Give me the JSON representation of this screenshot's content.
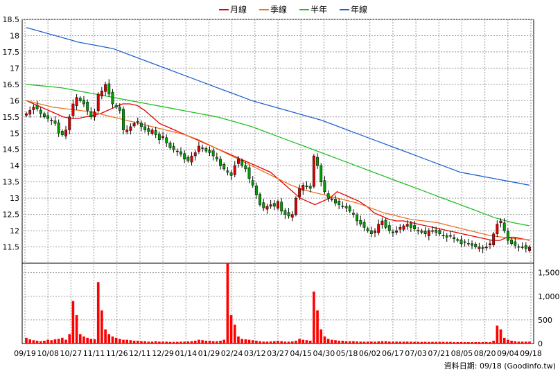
{
  "chart_data": {
    "type": "candlestick+volume",
    "legend": [
      {
        "label": "月線",
        "color": "#e00000"
      },
      {
        "label": "季線",
        "color": "#f07020"
      },
      {
        "label": "半年",
        "color": "#20c020"
      },
      {
        "label": "年線",
        "color": "#2060d0"
      }
    ],
    "colors": {
      "up": "#e00000",
      "down": "#00a000",
      "volume": "#ff0000",
      "grid": "#9a9a9a"
    },
    "price_axis": {
      "ticks": [
        "18.5",
        "18",
        "17.5",
        "17",
        "16.5",
        "16",
        "15.5",
        "15",
        "14.5",
        "14",
        "13.5",
        "13",
        "12.5",
        "12",
        "11.5"
      ],
      "ylim": [
        11.0,
        18.5
      ]
    },
    "volume_axis": {
      "ticks": [
        "1,500",
        "1,000",
        "500",
        "0"
      ],
      "ylim": [
        0,
        1700
      ]
    },
    "x_ticks": [
      "09/19",
      "10/08",
      "10/27",
      "11/11",
      "11/26",
      "12/11",
      "12/29",
      "01/14",
      "01/29",
      "02/24",
      "03/12",
      "03/27",
      "04/15",
      "04/30",
      "05/18",
      "06/02",
      "06/17",
      "07/03",
      "07/21",
      "08/05",
      "08/20",
      "09/04",
      "09/18"
    ],
    "close": [
      15.6,
      15.7,
      15.8,
      15.75,
      15.6,
      15.5,
      15.45,
      15.4,
      15.3,
      15.0,
      14.95,
      15.1,
      15.5,
      15.9,
      16.1,
      16.0,
      15.9,
      15.7,
      15.5,
      15.65,
      16.2,
      16.3,
      16.5,
      16.2,
      15.9,
      15.8,
      15.7,
      15.1,
      15.1,
      15.2,
      15.3,
      15.35,
      15.2,
      15.1,
      15.05,
      15.1,
      14.95,
      14.8,
      14.9,
      14.7,
      14.55,
      14.5,
      14.45,
      14.35,
      14.2,
      14.15,
      14.3,
      14.4,
      14.6,
      14.55,
      14.45,
      14.4,
      14.3,
      14.2,
      14.0,
      13.9,
      13.8,
      13.7,
      14.0,
      14.2,
      14.0,
      13.9,
      13.6,
      13.4,
      13.1,
      12.8,
      12.7,
      12.75,
      12.8,
      12.75,
      12.9,
      12.6,
      12.5,
      12.45,
      12.5,
      13.0,
      13.3,
      13.4,
      13.35,
      13.3,
      14.3,
      14.0,
      13.5,
      13.2,
      13.0,
      12.95,
      12.85,
      12.8,
      12.75,
      12.7,
      12.6,
      12.5,
      12.3,
      12.2,
      12.1,
      12.0,
      11.9,
      12.0,
      12.2,
      12.3,
      12.1,
      12.0,
      11.95,
      12.0,
      12.1,
      12.15,
      12.2,
      12.1,
      12.05,
      12.0,
      11.95,
      11.9,
      12.0,
      12.0,
      11.95,
      11.9,
      11.85,
      11.8,
      11.85,
      11.75,
      11.7,
      11.6,
      11.65,
      11.6,
      11.55,
      11.5,
      11.5,
      11.45,
      11.5,
      11.6,
      11.9,
      12.2,
      12.3,
      12.0,
      11.7,
      11.6,
      11.55,
      11.5,
      11.5,
      11.45,
      11.5
    ],
    "volume": [
      120,
      90,
      70,
      60,
      50,
      60,
      80,
      70,
      90,
      100,
      120,
      80,
      200,
      900,
      600,
      200,
      150,
      120,
      100,
      90,
      1300,
      700,
      300,
      200,
      150,
      120,
      100,
      80,
      80,
      70,
      60,
      60,
      50,
      50,
      40,
      40,
      50,
      40,
      40,
      40,
      35,
      35,
      35,
      40,
      40,
      45,
      50,
      60,
      80,
      70,
      60,
      60,
      50,
      50,
      60,
      80,
      1700,
      600,
      400,
      150,
      100,
      90,
      80,
      70,
      60,
      50,
      40,
      40,
      45,
      50,
      60,
      50,
      40,
      40,
      45,
      60,
      100,
      80,
      70,
      60,
      1100,
      700,
      300,
      150,
      100,
      80,
      70,
      60,
      60,
      50,
      50,
      50,
      45,
      40,
      40,
      40,
      40,
      40,
      45,
      50,
      50,
      40,
      40,
      40,
      40,
      40,
      40,
      40,
      35,
      35,
      35,
      35,
      35,
      35,
      35,
      35,
      35,
      35,
      35,
      30,
      30,
      30,
      30,
      30,
      30,
      30,
      30,
      30,
      30,
      30,
      60,
      380,
      300,
      120,
      80,
      60,
      50,
      40,
      40,
      40,
      40
    ],
    "ma": {
      "月線": [
        16.0,
        15.9,
        15.8,
        15.7,
        15.6,
        15.5,
        15.45,
        15.45,
        15.5,
        15.55,
        15.6,
        15.7,
        15.8,
        15.9,
        15.9,
        15.85,
        15.7,
        15.5,
        15.3,
        15.2,
        15.1,
        15.0,
        14.9,
        14.8,
        14.7,
        14.6,
        14.5,
        14.4,
        14.3,
        14.2,
        14.1,
        14.0,
        13.9,
        13.8,
        13.6,
        13.4,
        13.2,
        13.0,
        12.9,
        12.8,
        12.9,
        13.0,
        13.2,
        13.1,
        13.0,
        12.9,
        12.75,
        12.55,
        12.45,
        12.35,
        12.3,
        12.3,
        12.25,
        12.2,
        12.15,
        12.1,
        12.05,
        12.0,
        11.95,
        11.9,
        11.85,
        11.8,
        11.75,
        11.7,
        11.7,
        11.8,
        11.8,
        11.75,
        11.7
      ],
      "季線": [
        16.0,
        15.9,
        15.8,
        15.75,
        15.7,
        15.65,
        15.55,
        15.45,
        15.35,
        15.25,
        15.15,
        15.05,
        14.95,
        14.8,
        14.6,
        14.4,
        14.2,
        14.0,
        13.8,
        13.6,
        13.4,
        13.25,
        13.15,
        13.05,
        12.95,
        12.85,
        12.7,
        12.55,
        12.45,
        12.35,
        12.3,
        12.25,
        12.15,
        12.05,
        11.95,
        11.85,
        11.8,
        11.75,
        11.72
      ],
      "半年": [
        16.5,
        16.45,
        16.4,
        16.3,
        16.2,
        16.1,
        16.0,
        15.9,
        15.8,
        15.7,
        15.6,
        15.5,
        15.35,
        15.2,
        15.0,
        14.8,
        14.6,
        14.4,
        14.2,
        14.0,
        13.8,
        13.6,
        13.4,
        13.2,
        13.0,
        12.8,
        12.6,
        12.4,
        12.25,
        12.15
      ],
      "年線": [
        18.25,
        18.1,
        17.95,
        17.8,
        17.7,
        17.6,
        17.4,
        17.2,
        17.0,
        16.8,
        16.6,
        16.4,
        16.2,
        16.0,
        15.85,
        15.7,
        15.55,
        15.4,
        15.2,
        15.0,
        14.8,
        14.6,
        14.4,
        14.2,
        14.0,
        13.8,
        13.7,
        13.6,
        13.5,
        13.4
      ]
    }
  },
  "source_note": "資料日期: 09/18 (Goodinfo.tw)"
}
